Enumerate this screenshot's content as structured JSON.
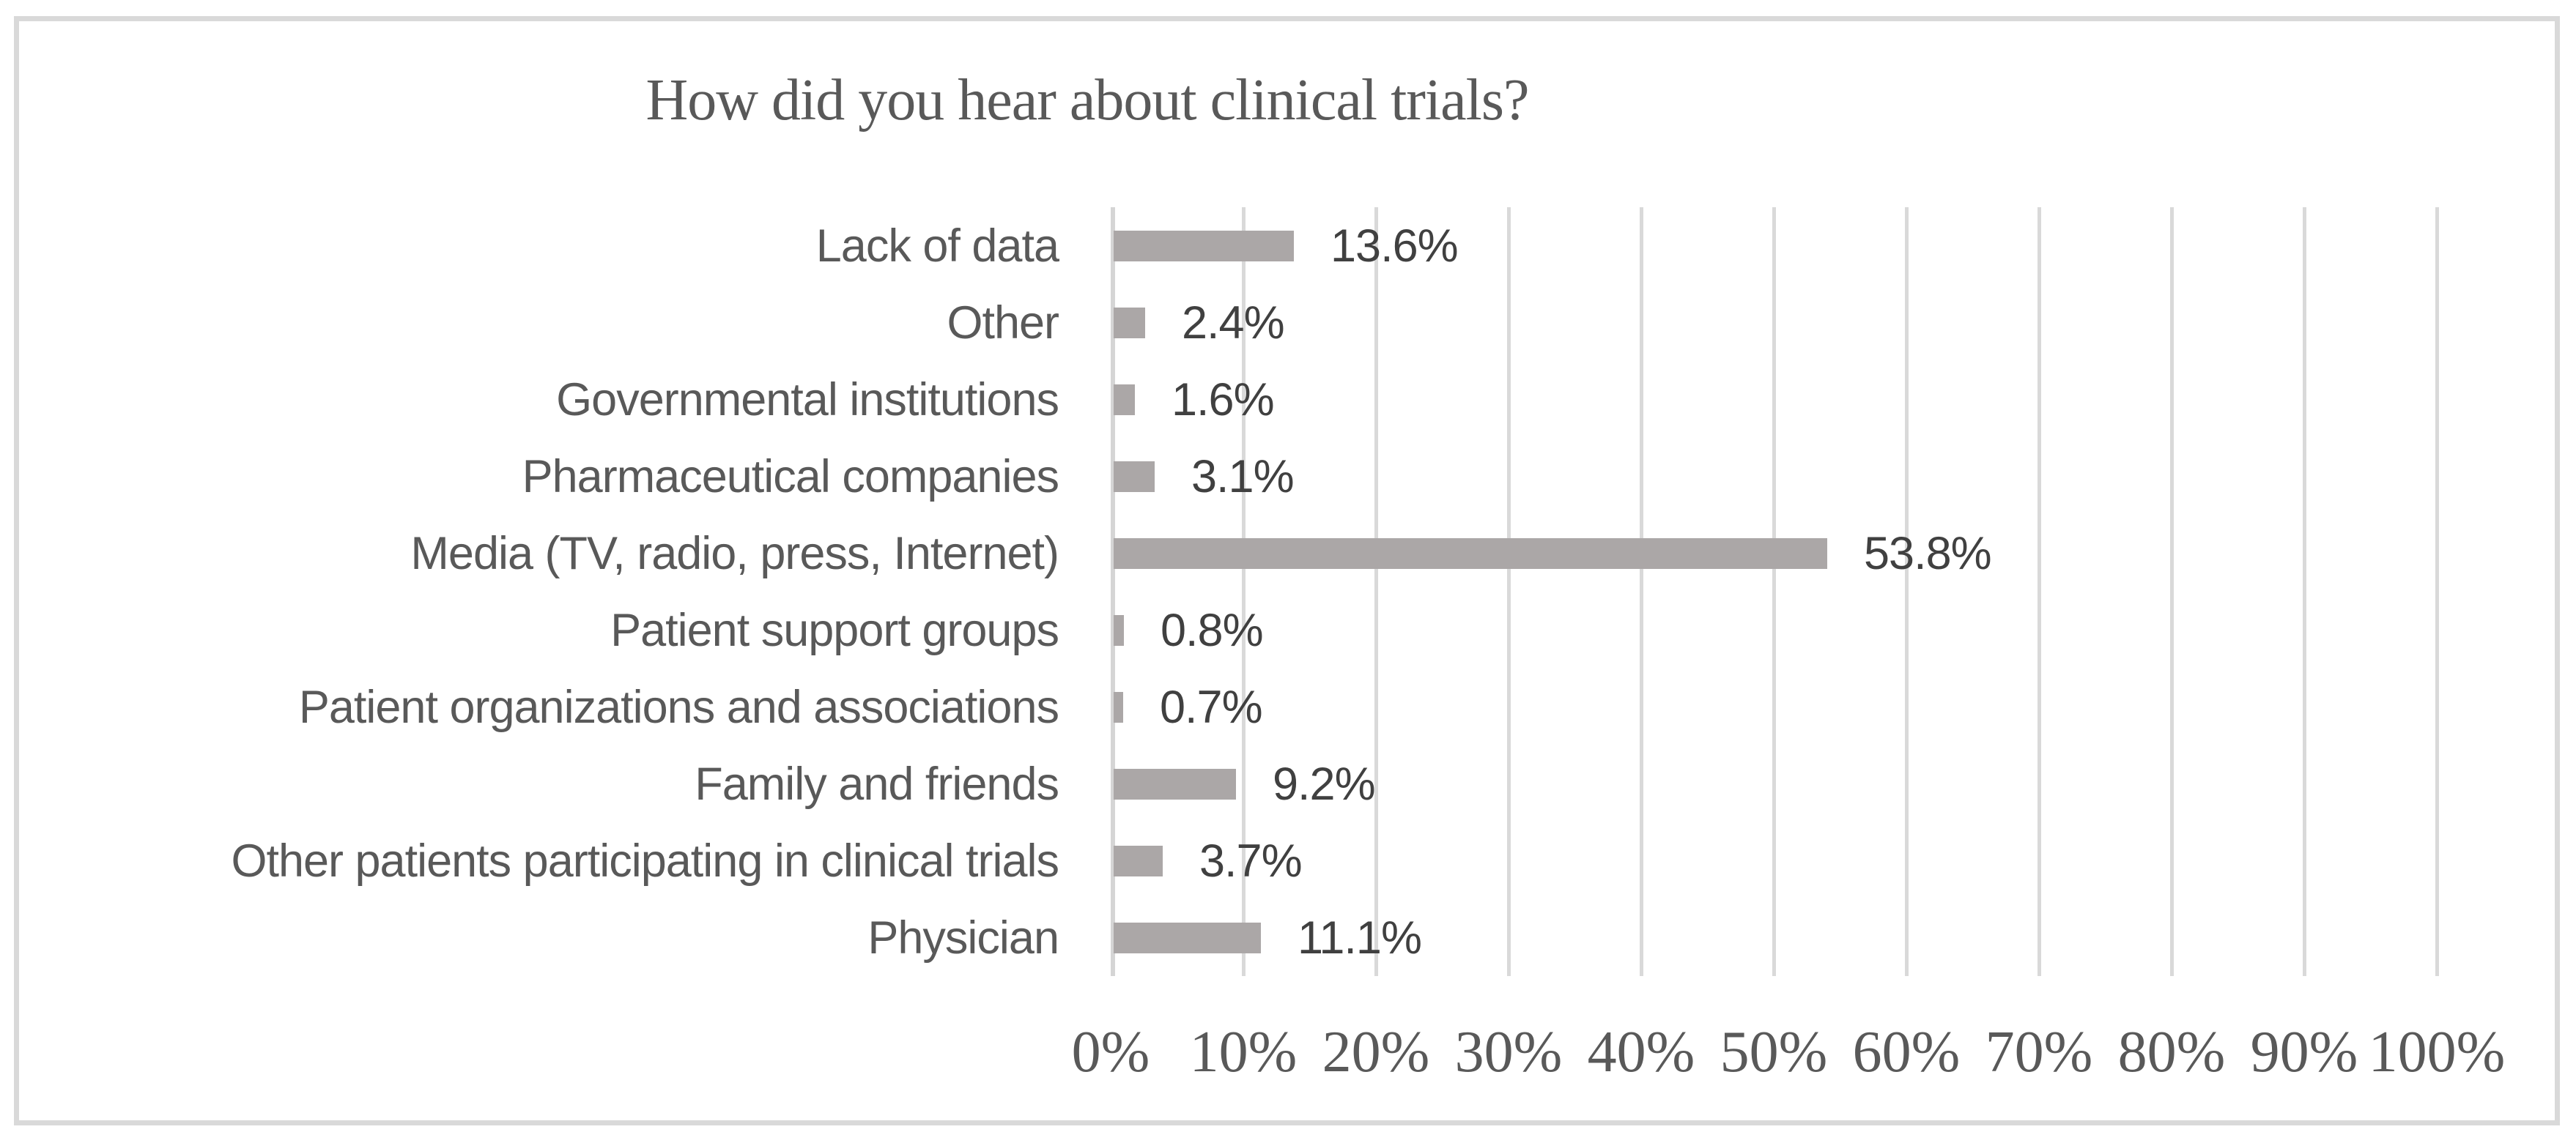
{
  "chart_data": {
    "type": "bar",
    "orientation": "horizontal",
    "title": "How did you hear about clinical trials?",
    "categories": [
      "Lack of data",
      "Other",
      "Governmental institutions",
      "Pharmaceutical companies",
      "Media (TV, radio, press, Internet)",
      "Patient support groups",
      "Patient organizations and associations",
      "Family and friends",
      "Other patients participating in clinical trials",
      "Physician"
    ],
    "values": [
      13.6,
      2.4,
      1.6,
      3.1,
      53.8,
      0.8,
      0.7,
      9.2,
      3.7,
      11.1
    ],
    "value_labels": [
      "13.6%",
      "2.4%",
      "1.6%",
      "3.1%",
      "53.8%",
      "0.8%",
      "0.7%",
      "9.2%",
      "3.7%",
      "11.1%"
    ],
    "x_tick_labels": [
      "0%",
      "10%",
      "20%",
      "30%",
      "40%",
      "50%",
      "60%",
      "70%",
      "80%",
      "90%",
      "100%"
    ],
    "xlim": [
      0,
      100
    ],
    "grid": "vertical-major-gridlines",
    "legend": "none",
    "data_labels_position": "outside-end",
    "colors": {
      "bar_fill": "#aba7a7",
      "gridline": "#d9d9d9",
      "axis_line": "#d5d5d5",
      "title_text": "#595959",
      "category_text": "#595959",
      "value_text": "#404040",
      "tick_text": "#595959",
      "frame_border": "#d9d9d9",
      "background": "#ffffff"
    }
  }
}
